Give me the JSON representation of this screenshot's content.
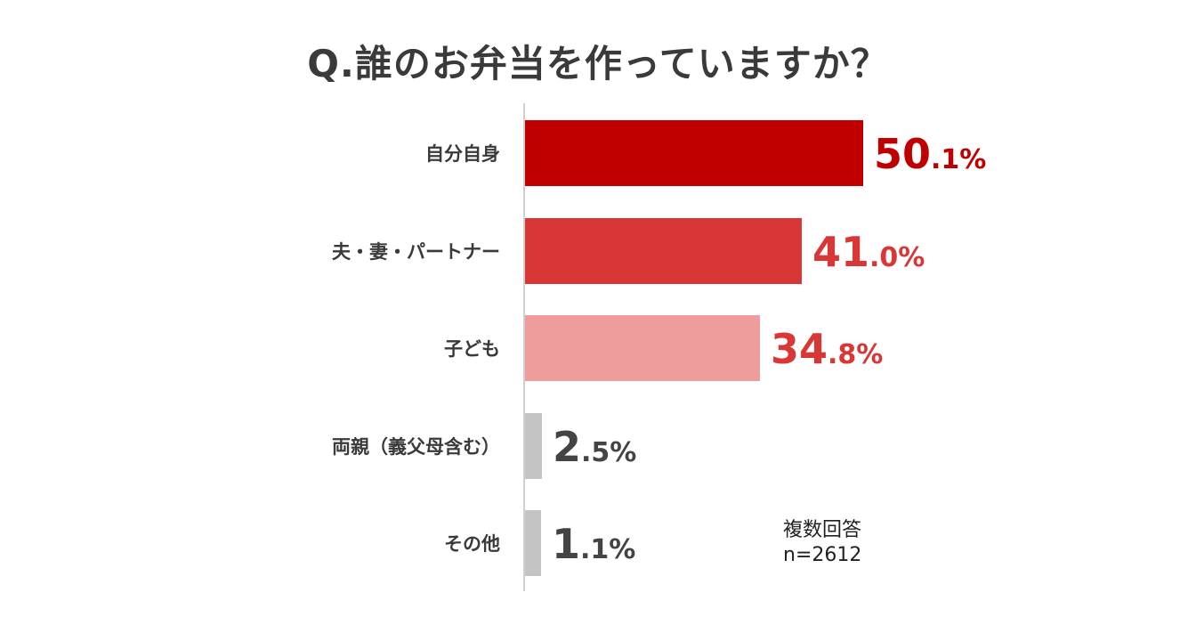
{
  "chart_data": {
    "type": "bar",
    "orientation": "horizontal",
    "title": "Q.誰のお弁当を作っていますか？",
    "categories": [
      "自分自身",
      "夫・妻・パートナー",
      "子ども",
      "両親（義父母含む）",
      "その他"
    ],
    "values": [
      50.1,
      41.0,
      34.8,
      2.5,
      1.1
    ],
    "data_labels": [
      {
        "int": "50",
        "dec": ".1%"
      },
      {
        "int": "41",
        "dec": ".0%"
      },
      {
        "int": "34",
        "dec": ".8%"
      },
      {
        "int": "2",
        "dec": ".5%"
      },
      {
        "int": "1",
        "dec": ".1%"
      }
    ],
    "bar_colors": [
      "#c00000",
      "#d93636",
      "#ee9c9c",
      "#c4c4c4",
      "#c4c4c4"
    ],
    "label_colors": [
      "#c00000",
      "#d93636",
      "#d93636",
      "#444444",
      "#444444"
    ],
    "xlim": [
      0,
      60
    ],
    "grid": false,
    "note": [
      "複数回答",
      "n=2612"
    ]
  }
}
